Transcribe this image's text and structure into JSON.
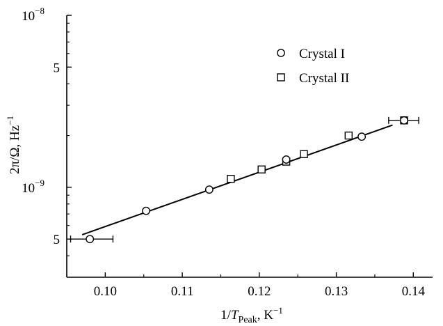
{
  "chart_data": {
    "type": "scatter",
    "title": "",
    "xlabel": {
      "pre": "1/",
      "var": "T",
      "sub": "Peak",
      "post": ", K",
      "sup": "−1"
    },
    "ylabel": {
      "text": "2π/Ω, Hz",
      "sup": "−1"
    },
    "x_scale": "linear",
    "y_scale": "log",
    "xlim": [
      0.095,
      0.1425
    ],
    "ylim": [
      3e-10,
      1e-08
    ],
    "x_ticks": [
      0.1,
      0.11,
      0.12,
      0.13,
      0.14
    ],
    "x_tick_labels": [
      "0.10",
      "0.11",
      "0.12",
      "0.13",
      "0.14"
    ],
    "y_ticks": [
      {
        "value": 1e-08,
        "label": "10",
        "sup": "−8"
      },
      {
        "value": 5e-09,
        "label": "5",
        "sup": ""
      },
      {
        "value": 1e-09,
        "label": "10",
        "sup": "−9"
      },
      {
        "value": 5e-10,
        "label": "5",
        "sup": ""
      }
    ],
    "legend": {
      "position": "top-right"
    },
    "series": [
      {
        "name": "Crystal I",
        "marker": "circle",
        "points": [
          {
            "x": 0.098,
            "y": 5e-10,
            "xerr": [
              0.0955,
              0.101
            ]
          },
          {
            "x": 0.1053,
            "y": 7.3e-10
          },
          {
            "x": 0.1135,
            "y": 9.7e-10
          },
          {
            "x": 0.1235,
            "y": 1.45e-09
          },
          {
            "x": 0.1333,
            "y": 1.97e-09
          },
          {
            "x": 0.1388,
            "y": 2.45e-09
          }
        ]
      },
      {
        "name": "Crystal II",
        "marker": "square",
        "points": [
          {
            "x": 0.1163,
            "y": 1.12e-09
          },
          {
            "x": 0.1203,
            "y": 1.27e-09
          },
          {
            "x": 0.1235,
            "y": 1.41e-09
          },
          {
            "x": 0.1258,
            "y": 1.56e-09
          },
          {
            "x": 0.1316,
            "y": 2e-09
          },
          {
            "x": 0.1388,
            "y": 2.45e-09,
            "xerr": [
              0.1368,
              0.1407
            ]
          }
        ]
      }
    ],
    "fit_line": {
      "x": [
        0.097,
        0.1373
      ],
      "y": [
        5.3e-10,
        2.3e-09
      ]
    }
  }
}
